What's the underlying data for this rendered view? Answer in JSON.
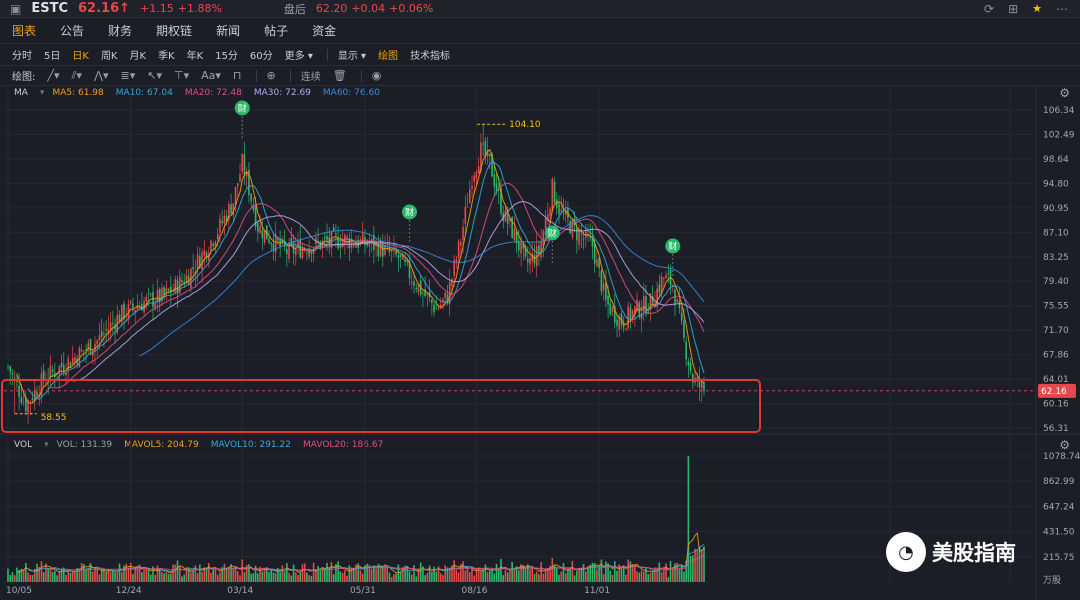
{
  "header": {
    "ticker": "ESTC",
    "price": "62.16↑",
    "change": "+1.15",
    "change_pct": "+1.88%",
    "after_label": "盘后",
    "after_price": "62.20",
    "after_change": "+0.04",
    "after_pct": "+0.06%"
  },
  "nav_tabs": [
    "图表",
    "公告",
    "财务",
    "期权链",
    "新闻",
    "帖子",
    "资金"
  ],
  "periods": [
    "分时",
    "5日",
    "日K",
    "周K",
    "月K",
    "季K",
    "年K",
    "15分",
    "60分",
    "更多 ▾"
  ],
  "display_menu": "显示 ▾",
  "draw_label": "绘图",
  "indicator_label": "技术指标",
  "drawbar": {
    "label": "绘图:",
    "connect_label": "连续"
  },
  "ma_legend": {
    "title": "MA",
    "ma5": "MA5: 61.98",
    "ma10": "MA10: 67.04",
    "ma20": "MA20: 72.48",
    "ma30": "MA30: 72.69",
    "ma60": "MA60: 76.60"
  },
  "vol_legend": {
    "title": "VOL",
    "vol": "VOL: 131.39",
    "mavol5": "MAVOL5: 204.79",
    "mavol10": "MAVOL10: 291.22",
    "mavol20": "MAVOL20: 186.67"
  },
  "watermark": "美股指南",
  "colors": {
    "up": "#e8474b",
    "down": "#2cb86b",
    "ma5": "#f0a10e",
    "ma10": "#3aa6d8",
    "ma20": "#e04d86",
    "ma30": "#b9a6ee",
    "ma60": "#3a8ad6",
    "highlight": "#e03a2a"
  },
  "icons": [
    "refresh-icon",
    "grid-icon",
    "star-icon",
    "more-icon",
    "gear-icon"
  ],
  "chart_data": {
    "type": "candlestick",
    "x_tick_labels": [
      "10/05",
      "12/24",
      "03/14",
      "05/31",
      "08/16",
      "11/01"
    ],
    "x_tick_index": [
      0,
      55,
      105,
      160,
      210,
      265
    ],
    "price_axis_ticks": [
      106.34,
      102.49,
      98.64,
      94.8,
      90.95,
      87.1,
      83.25,
      79.4,
      75.55,
      71.7,
      67.86,
      64.01,
      60.16,
      56.31
    ],
    "price_range": [
      56.31,
      106.34
    ],
    "last_price_label": "62.16",
    "annotations": [
      {
        "text": "104.10",
        "type": "high"
      },
      {
        "text": "58.55",
        "type": "low"
      }
    ],
    "event_markers": {
      "label": "财",
      "index": [
        105,
        180,
        244,
        298
      ]
    },
    "close_anchors": [
      [
        0,
        66
      ],
      [
        8,
        60
      ],
      [
        16,
        64
      ],
      [
        28,
        67
      ],
      [
        40,
        70
      ],
      [
        50,
        74
      ],
      [
        60,
        76
      ],
      [
        70,
        77
      ],
      [
        80,
        80
      ],
      [
        88,
        84
      ],
      [
        95,
        88
      ],
      [
        101,
        92
      ],
      [
        105,
        98
      ],
      [
        108,
        94
      ],
      [
        112,
        88
      ],
      [
        118,
        86
      ],
      [
        125,
        84
      ],
      [
        135,
        85
      ],
      [
        150,
        86
      ],
      [
        165,
        85
      ],
      [
        175,
        83
      ],
      [
        185,
        78
      ],
      [
        192,
        75
      ],
      [
        197,
        77
      ],
      [
        203,
        86
      ],
      [
        208,
        96
      ],
      [
        212,
        100
      ],
      [
        216,
        98
      ],
      [
        222,
        90
      ],
      [
        228,
        86
      ],
      [
        232,
        82
      ],
      [
        238,
        84
      ],
      [
        244,
        94
      ],
      [
        248,
        90
      ],
      [
        255,
        87
      ],
      [
        262,
        85
      ],
      [
        268,
        76
      ],
      [
        275,
        73
      ],
      [
        282,
        75
      ],
      [
        288,
        76
      ],
      [
        294,
        80
      ],
      [
        298,
        79
      ],
      [
        303,
        70
      ],
      [
        307,
        64
      ],
      [
        312,
        62.16
      ]
    ],
    "ma_lines": [
      {
        "name": "MA5",
        "color": "#f0a10e",
        "window": 5
      },
      {
        "name": "MA10",
        "color": "#3aa6d8",
        "window": 10
      },
      {
        "name": "MA20",
        "color": "#e04d86",
        "window": 20
      },
      {
        "name": "MA30",
        "color": "#b9a6ee",
        "window": 30
      },
      {
        "name": "MA60",
        "color": "#3a8ad6",
        "window": 60
      }
    ],
    "volume": {
      "axis_ticks": [
        1078.74,
        862.99,
        647.24,
        431.5,
        215.75
      ],
      "unit": "万股",
      "max": 1078.74,
      "spike": {
        "index": 305,
        "value": 1078.74
      }
    }
  }
}
